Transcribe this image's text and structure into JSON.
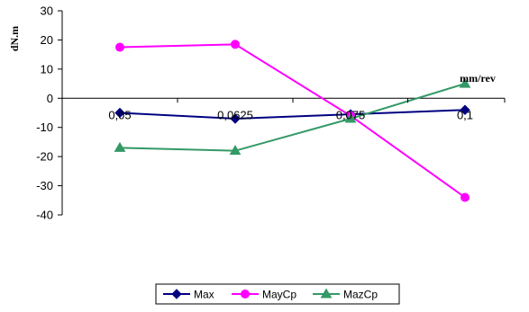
{
  "chart_data": {
    "type": "line",
    "categories": [
      "0,05",
      "0,0625",
      "0,075",
      "0,1"
    ],
    "x": [
      0.05,
      0.0625,
      0.075,
      0.1
    ],
    "series": [
      {
        "name": "Max",
        "values": [
          -5,
          -7,
          -5.5,
          -4
        ],
        "color": "#000080",
        "marker": "diamond"
      },
      {
        "name": "MayCp",
        "values": [
          17.5,
          18.5,
          -6,
          -34
        ],
        "color": "#ff00ff",
        "marker": "circle"
      },
      {
        "name": "MazCp",
        "values": [
          -17,
          -18,
          -7,
          5
        ],
        "color": "#339966",
        "marker": "triangle"
      }
    ],
    "title": "",
    "xlabel": "mm/rev",
    "ylabel": "dN.m",
    "ylim": [
      -40,
      30
    ],
    "yticks": [
      30,
      20,
      10,
      0,
      -10,
      -20,
      -30,
      -40
    ],
    "grid": false,
    "legend": "bottom"
  }
}
